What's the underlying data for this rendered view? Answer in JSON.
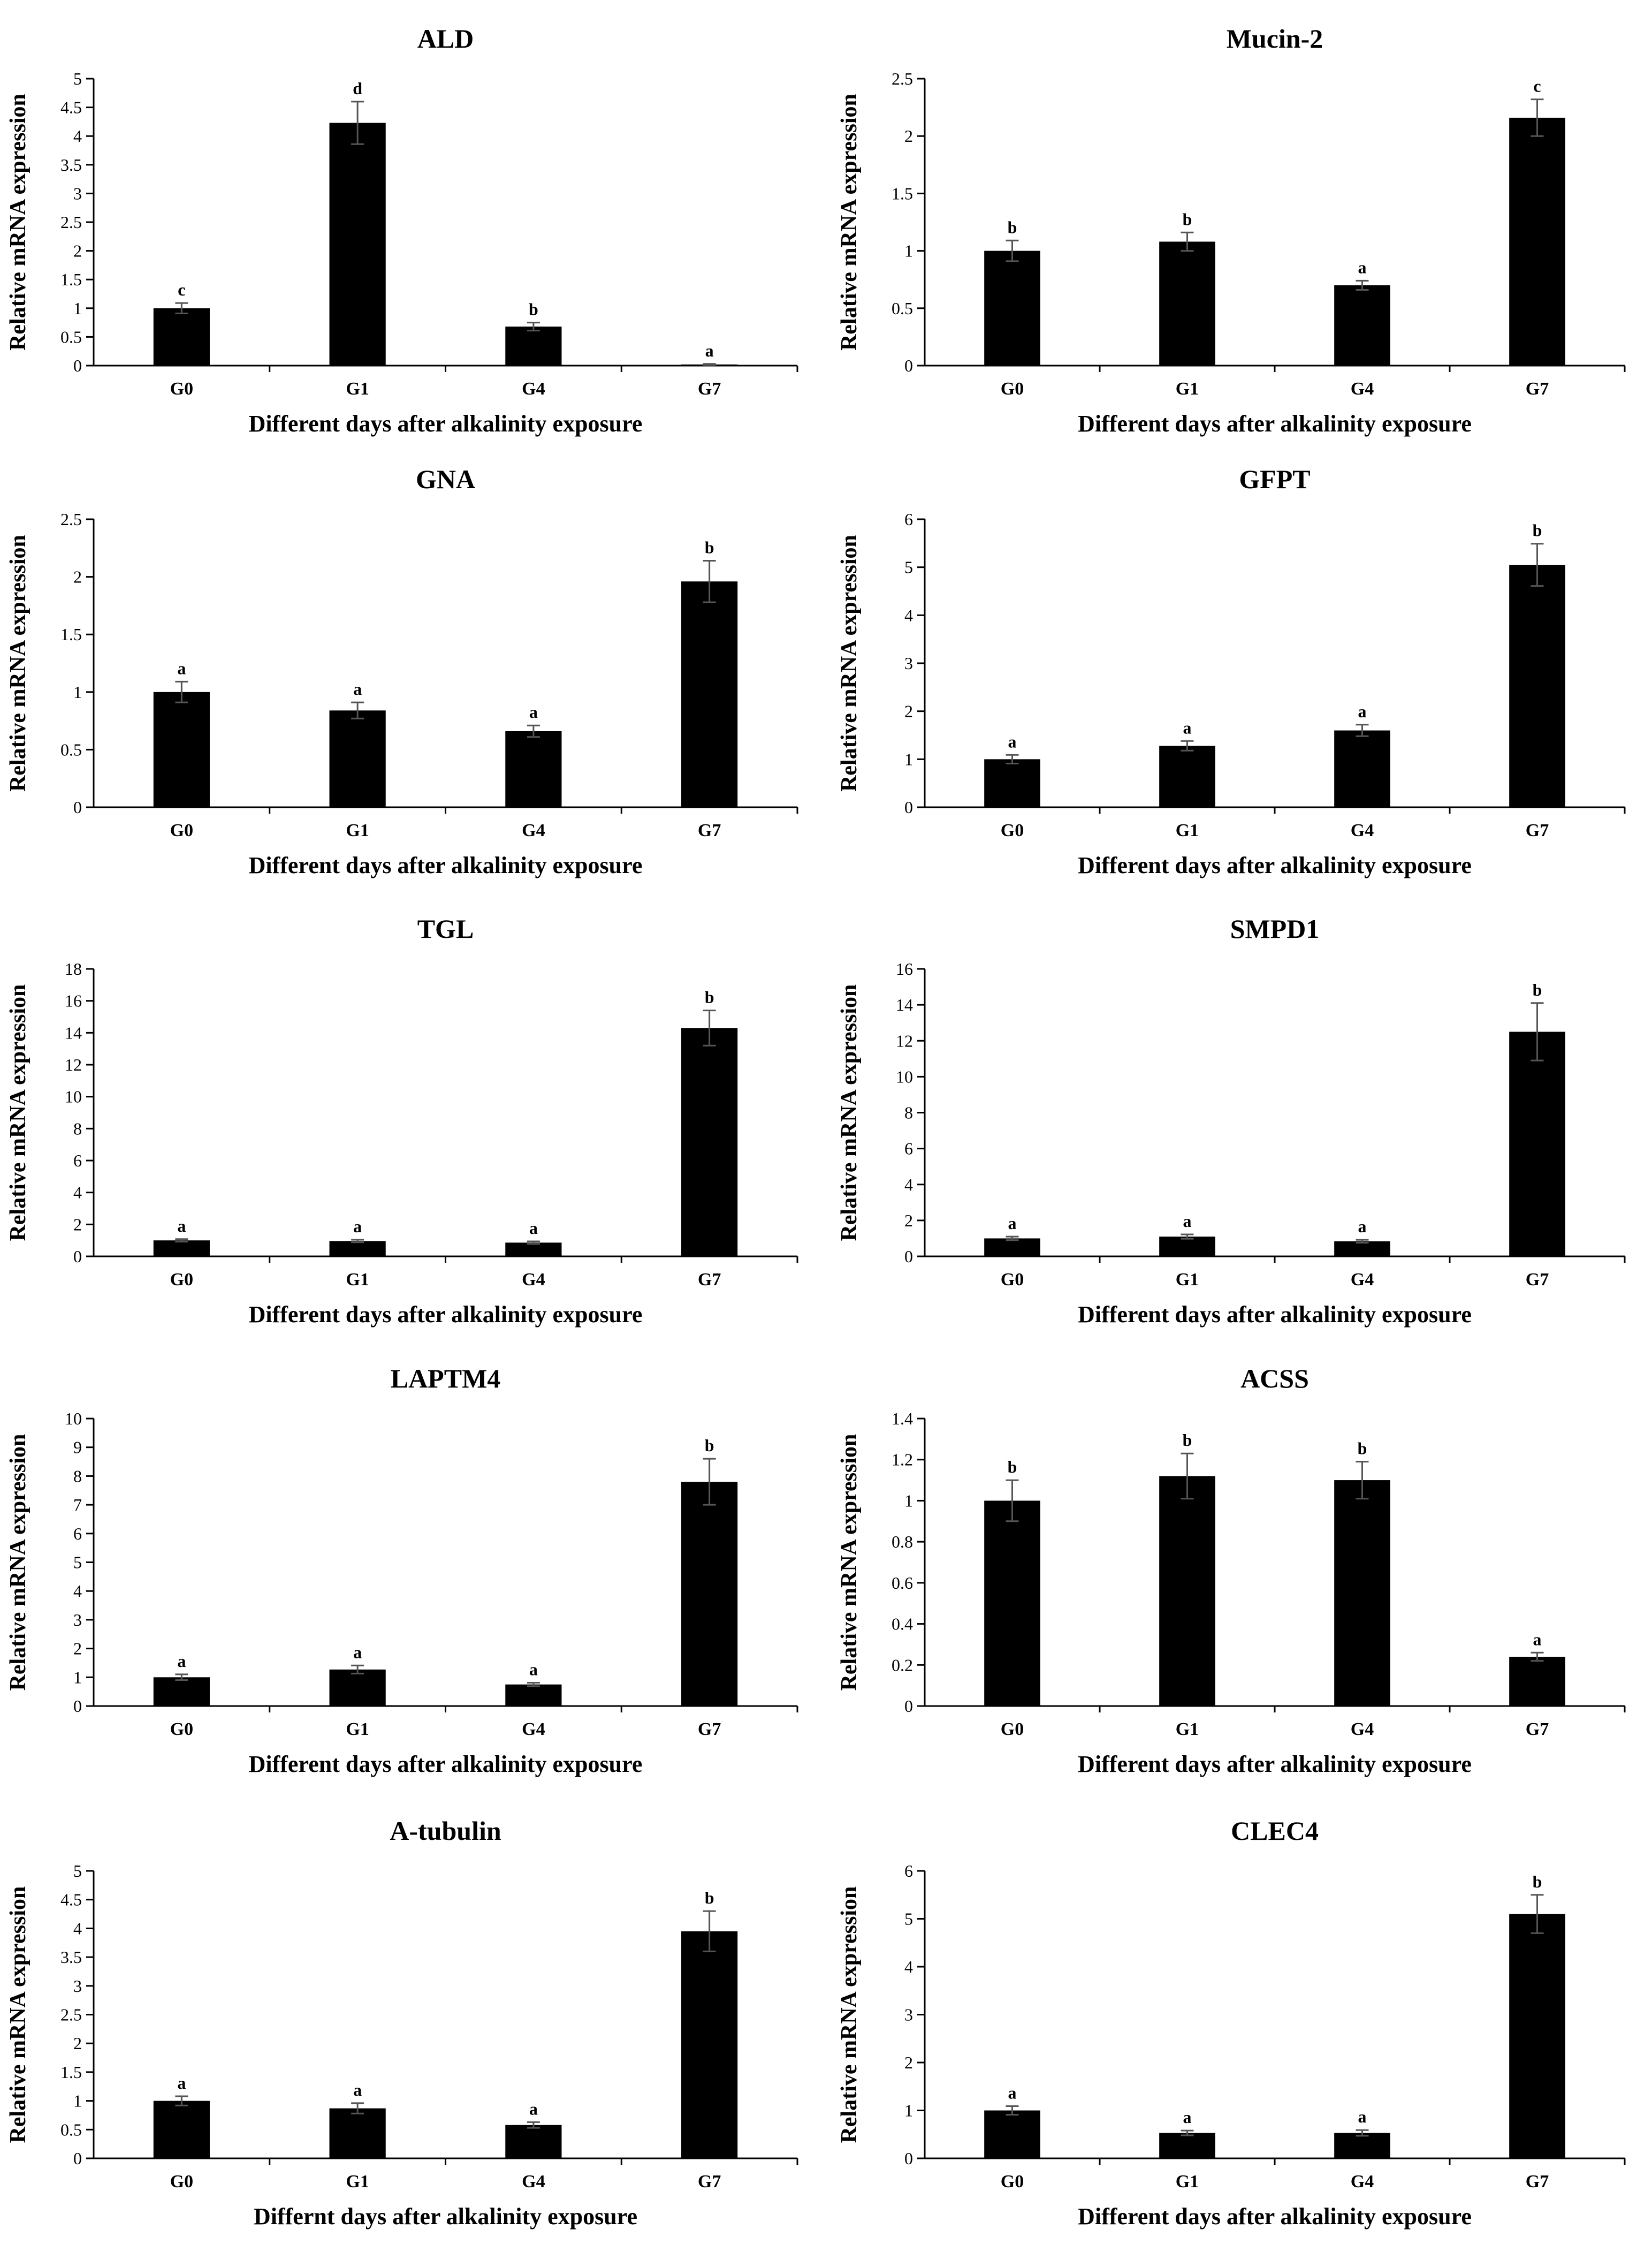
{
  "colors": {
    "bar": "#000000",
    "axis": "#000000",
    "background": "#ffffff"
  },
  "chart_data": [
    {
      "type": "bar",
      "title": "ALD",
      "xlabel": "Different days after alkalinity exposure",
      "ylabel": "Relative mRNA expression",
      "categories": [
        "G0",
        "G1",
        "G4",
        "G7"
      ],
      "values": [
        1.0,
        4.23,
        0.68,
        0.02
      ],
      "errors": [
        0.09,
        0.37,
        0.07,
        0.01
      ],
      "letters": [
        "c",
        "d",
        "b",
        "a"
      ],
      "ylim": [
        0,
        5
      ],
      "yticks": [
        "0",
        "0.5",
        "1",
        "1.5",
        "2",
        "2.5",
        "3",
        "3.5",
        "4",
        "4.5",
        "5"
      ]
    },
    {
      "type": "bar",
      "title": "Mucin-2",
      "xlabel": "Different days after alkalinity exposure",
      "ylabel": "Relative mRNA expression",
      "categories": [
        "G0",
        "G1",
        "G4",
        "G7"
      ],
      "values": [
        1.0,
        1.08,
        0.7,
        2.16
      ],
      "errors": [
        0.09,
        0.08,
        0.04,
        0.16
      ],
      "letters": [
        "b",
        "b",
        "a",
        "c"
      ],
      "ylim": [
        0,
        2.5
      ],
      "yticks": [
        "0",
        "0.5",
        "1",
        "1.5",
        "2",
        "2.5"
      ]
    },
    {
      "type": "bar",
      "title": "GNA",
      "xlabel": "Different days after alkalinity exposure",
      "ylabel": "Relative mRNA expression",
      "categories": [
        "G0",
        "G1",
        "G4",
        "G7"
      ],
      "values": [
        1.0,
        0.84,
        0.66,
        1.96
      ],
      "errors": [
        0.09,
        0.07,
        0.05,
        0.18
      ],
      "letters": [
        "a",
        "a",
        "a",
        "b"
      ],
      "ylim": [
        0,
        2.5
      ],
      "yticks": [
        "0",
        "0.5",
        "1",
        "1.5",
        "2",
        "2.5"
      ]
    },
    {
      "type": "bar",
      "title": "GFPT",
      "xlabel": "Different days after alkalinity exposure",
      "ylabel": "Relative mRNA expression",
      "categories": [
        "G0",
        "G1",
        "G4",
        "G7"
      ],
      "values": [
        1.0,
        1.28,
        1.6,
        5.05
      ],
      "errors": [
        0.09,
        0.1,
        0.12,
        0.44
      ],
      "letters": [
        "a",
        "a",
        "a",
        "b"
      ],
      "ylim": [
        0,
        6
      ],
      "yticks": [
        "0",
        "1",
        "2",
        "3",
        "4",
        "5",
        "6"
      ]
    },
    {
      "type": "bar",
      "title": "TGL",
      "xlabel": "Different days after alkalinity exposure",
      "ylabel": "Relative mRNA expression",
      "categories": [
        "G0",
        "G1",
        "G4",
        "G7"
      ],
      "values": [
        1.0,
        0.96,
        0.86,
        14.3
      ],
      "errors": [
        0.08,
        0.08,
        0.08,
        1.1
      ],
      "letters": [
        "a",
        "a",
        "a",
        "b"
      ],
      "ylim": [
        0,
        18
      ],
      "yticks": [
        "0",
        "2",
        "4",
        "6",
        "8",
        "10",
        "12",
        "14",
        "16",
        "18"
      ]
    },
    {
      "type": "bar",
      "title": "SMPD1",
      "xlabel": "Different days after alkalinity exposure",
      "ylabel": "Relative mRNA expression",
      "categories": [
        "G0",
        "G1",
        "G4",
        "G7"
      ],
      "values": [
        1.0,
        1.1,
        0.84,
        12.5
      ],
      "errors": [
        0.1,
        0.12,
        0.08,
        1.6
      ],
      "letters": [
        "a",
        "a",
        "a",
        "b"
      ],
      "ylim": [
        0,
        16
      ],
      "yticks": [
        "0",
        "2",
        "4",
        "6",
        "8",
        "10",
        "12",
        "14",
        "16"
      ]
    },
    {
      "type": "bar",
      "title": "LAPTM4",
      "xlabel": "Different days after alkalinity exposure",
      "ylabel": "Relative mRNA expression",
      "categories": [
        "G0",
        "G1",
        "G4",
        "G7"
      ],
      "values": [
        1.0,
        1.27,
        0.75,
        7.8
      ],
      "errors": [
        0.1,
        0.14,
        0.06,
        0.8
      ],
      "letters": [
        "a",
        "a",
        "a",
        "b"
      ],
      "ylim": [
        0,
        10
      ],
      "yticks": [
        "0",
        "1",
        "2",
        "3",
        "4",
        "5",
        "6",
        "7",
        "8",
        "9",
        "10"
      ]
    },
    {
      "type": "bar",
      "title": "ACSS",
      "xlabel": "Different days after alkalinity exposure",
      "ylabel": "Relative mRNA expression",
      "categories": [
        "G0",
        "G1",
        "G4",
        "G7"
      ],
      "values": [
        1.0,
        1.12,
        1.1,
        0.24
      ],
      "errors": [
        0.1,
        0.11,
        0.09,
        0.02
      ],
      "letters": [
        "b",
        "b",
        "b",
        "a"
      ],
      "ylim": [
        0,
        1.4
      ],
      "yticks": [
        "0",
        "0.2",
        "0.4",
        "0.6",
        "0.8",
        "1",
        "1.2",
        "1.4"
      ]
    },
    {
      "type": "bar",
      "title": "A-tubulin",
      "xlabel": "Differnt days after alkalinity exposure",
      "ylabel": "Relative mRNA expression",
      "categories": [
        "G0",
        "G1",
        "G4",
        "G7"
      ],
      "values": [
        1.0,
        0.87,
        0.58,
        3.95
      ],
      "errors": [
        0.08,
        0.09,
        0.05,
        0.35
      ],
      "letters": [
        "a",
        "a",
        "a",
        "b"
      ],
      "ylim": [
        0,
        5
      ],
      "yticks": [
        "0",
        "0.5",
        "1",
        "1.5",
        "2",
        "2.5",
        "3",
        "3.5",
        "4",
        "4.5",
        "5"
      ]
    },
    {
      "type": "bar",
      "title": "CLEC4",
      "xlabel": "Different days after alkalinity exposure",
      "ylabel": "Relative mRNA expression",
      "categories": [
        "G0",
        "G1",
        "G4",
        "G7"
      ],
      "values": [
        1.0,
        0.53,
        0.53,
        5.1
      ],
      "errors": [
        0.09,
        0.05,
        0.06,
        0.4
      ],
      "letters": [
        "a",
        "a",
        "a",
        "b"
      ],
      "ylim": [
        0,
        6
      ],
      "yticks": [
        "0",
        "1",
        "2",
        "3",
        "4",
        "5",
        "6"
      ]
    }
  ]
}
